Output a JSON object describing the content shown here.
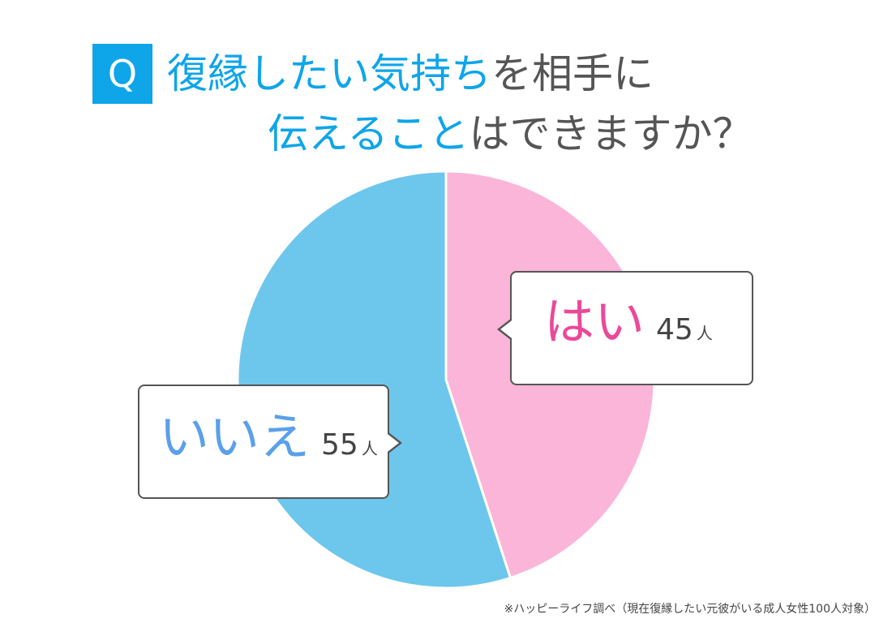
{
  "title": {
    "badge": "Q",
    "line1_highlight": "復縁したい気持ち",
    "line1_plain": "を相手に",
    "line2_highlight": "伝えること",
    "line2_plain": "はできますか？"
  },
  "chart_data": {
    "type": "pie",
    "categories": [
      "はい",
      "いいえ"
    ],
    "values": [
      45,
      55
    ],
    "value_labels": [
      "45",
      "55"
    ],
    "unit": "人",
    "colors": [
      "#fbb5d9",
      "#6dc7ec"
    ],
    "start": "12 o'clock, clockwise"
  },
  "footnote": "※ハッピーライフ調べ（現在復縁したい元彼がいる成人女性100人対象）"
}
